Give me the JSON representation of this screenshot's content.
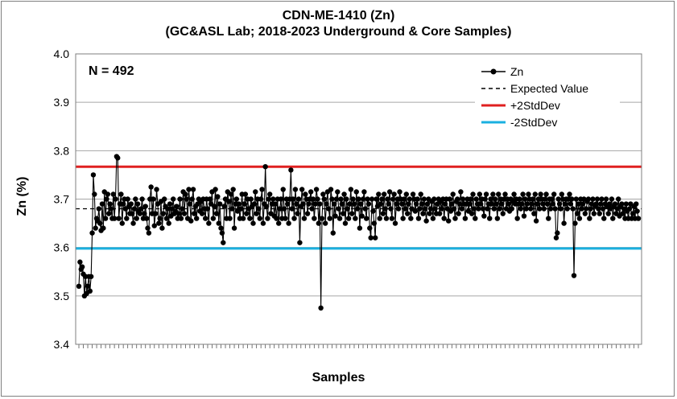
{
  "chart_data": {
    "type": "line",
    "title": "CDN-ME-1410 (Zn)",
    "subtitle": "(GC&ASL Lab; 2018-2023 Underground & Core Samples)",
    "xlabel": "Samples",
    "ylabel": "Zn (%)",
    "ylim": [
      3.4,
      4.0
    ],
    "yticks": [
      "3.4",
      "3.5",
      "3.6",
      "3.7",
      "3.8",
      "3.9",
      "4.0"
    ],
    "annotation": "N = 492",
    "n_samples": 492,
    "legend_position": "top-right",
    "grid": true,
    "expected_value": 3.68,
    "plus_2sd": 3.767,
    "minus_2sd": 3.598,
    "legend": [
      {
        "label": "Zn",
        "style": "line-marker",
        "color": "#000000"
      },
      {
        "label": "Expected Value",
        "style": "dashed",
        "color": "#000000"
      },
      {
        "label": "+2StdDev",
        "style": "solid",
        "color": "#e02020"
      },
      {
        "label": "-2StdDev",
        "style": "solid",
        "color": "#1ab0e0"
      }
    ],
    "series": [
      {
        "name": "Zn",
        "values": [
          3.52,
          3.57,
          3.555,
          3.56,
          3.545,
          3.5,
          3.54,
          3.505,
          3.52,
          3.54,
          3.51,
          3.54,
          3.63,
          3.75,
          3.71,
          3.64,
          3.66,
          3.655,
          3.68,
          3.65,
          3.635,
          3.69,
          3.64,
          3.715,
          3.66,
          3.7,
          3.71,
          3.67,
          3.69,
          3.68,
          3.66,
          3.71,
          3.66,
          3.7,
          3.788,
          3.785,
          3.66,
          3.69,
          3.71,
          3.65,
          3.69,
          3.7,
          3.68,
          3.66,
          3.7,
          3.685,
          3.67,
          3.69,
          3.67,
          3.65,
          3.68,
          3.7,
          3.66,
          3.69,
          3.675,
          3.67,
          3.68,
          3.7,
          3.66,
          3.67,
          3.685,
          3.66,
          3.64,
          3.63,
          3.7,
          3.725,
          3.67,
          3.7,
          3.645,
          3.67,
          3.72,
          3.69,
          3.65,
          3.66,
          3.695,
          3.64,
          3.67,
          3.7,
          3.685,
          3.66,
          3.68,
          3.65,
          3.69,
          3.665,
          3.68,
          3.7,
          3.67,
          3.675,
          3.685,
          3.66,
          3.67,
          3.7,
          3.66,
          3.68,
          3.715,
          3.67,
          3.71,
          3.7,
          3.66,
          3.72,
          3.69,
          3.655,
          3.7,
          3.72,
          3.67,
          3.685,
          3.66,
          3.69,
          3.7,
          3.675,
          3.695,
          3.67,
          3.7,
          3.68,
          3.66,
          3.7,
          3.68,
          3.65,
          3.7,
          3.69,
          3.715,
          3.66,
          3.685,
          3.72,
          3.67,
          3.705,
          3.65,
          3.69,
          3.64,
          3.63,
          3.61,
          3.685,
          3.7,
          3.66,
          3.715,
          3.695,
          3.66,
          3.71,
          3.68,
          3.72,
          3.64,
          3.69,
          3.7,
          3.675,
          3.69,
          3.66,
          3.68,
          3.71,
          3.66,
          3.69,
          3.71,
          3.67,
          3.7,
          3.68,
          3.66,
          3.7,
          3.685,
          3.65,
          3.69,
          3.715,
          3.67,
          3.7,
          3.68,
          3.66,
          3.7,
          3.72,
          3.65,
          3.69,
          3.767,
          3.685,
          3.66,
          3.7,
          3.71,
          3.67,
          3.69,
          3.7,
          3.665,
          3.69,
          3.66,
          3.7,
          3.65,
          3.68,
          3.7,
          3.66,
          3.72,
          3.68,
          3.66,
          3.7,
          3.69,
          3.65,
          3.7,
          3.76,
          3.68,
          3.7,
          3.66,
          3.72,
          3.69,
          3.67,
          3.7,
          3.61,
          3.685,
          3.72,
          3.69,
          3.66,
          3.71,
          3.7,
          3.67,
          3.69,
          3.7,
          3.715,
          3.68,
          3.7,
          3.66,
          3.69,
          3.72,
          3.7,
          3.65,
          3.69,
          3.475,
          3.66,
          3.71,
          3.7,
          3.65,
          3.69,
          3.715,
          3.68,
          3.66,
          3.72,
          3.7,
          3.63,
          3.69,
          3.665,
          3.7,
          3.715,
          3.68,
          3.66,
          3.7,
          3.69,
          3.67,
          3.71,
          3.65,
          3.7,
          3.68,
          3.66,
          3.69,
          3.72,
          3.67,
          3.7,
          3.69,
          3.66,
          3.715,
          3.68,
          3.7,
          3.64,
          3.69,
          3.665,
          3.7,
          3.715,
          3.68,
          3.66,
          3.7,
          3.69,
          3.64,
          3.62,
          3.7,
          3.675,
          3.65,
          3.62,
          3.7,
          3.685,
          3.71,
          3.66,
          3.69,
          3.7,
          3.67,
          3.71,
          3.68,
          3.66,
          3.7,
          3.69,
          3.715,
          3.68,
          3.66,
          3.7,
          3.71,
          3.65,
          3.69,
          3.7,
          3.68,
          3.715,
          3.7,
          3.69,
          3.66,
          3.7,
          3.68,
          3.71,
          3.67,
          3.69,
          3.7,
          3.66,
          3.68,
          3.71,
          3.7,
          3.675,
          3.69,
          3.7,
          3.66,
          3.68,
          3.71,
          3.69,
          3.67,
          3.7,
          3.68,
          3.655,
          3.69,
          3.7,
          3.67,
          3.68,
          3.695,
          3.66,
          3.7,
          3.68,
          3.67,
          3.69,
          3.7,
          3.67,
          3.695,
          3.68,
          3.7,
          3.66,
          3.69,
          3.7,
          3.68,
          3.655,
          3.7,
          3.675,
          3.69,
          3.71,
          3.68,
          3.66,
          3.695,
          3.7,
          3.67,
          3.69,
          3.715,
          3.68,
          3.7,
          3.69,
          3.66,
          3.69,
          3.7,
          3.675,
          3.69,
          3.7,
          3.67,
          3.71,
          3.68,
          3.66,
          3.7,
          3.69,
          3.68,
          3.71,
          3.69,
          3.7,
          3.68,
          3.665,
          3.7,
          3.71,
          3.68,
          3.69,
          3.66,
          3.7,
          3.69,
          3.71,
          3.68,
          3.7,
          3.69,
          3.66,
          3.71,
          3.68,
          3.7,
          3.69,
          3.67,
          3.7,
          3.71,
          3.68,
          3.7,
          3.69,
          3.675,
          3.7,
          3.68,
          3.695,
          3.71,
          3.69,
          3.7,
          3.66,
          3.69,
          3.7,
          3.68,
          3.69,
          3.71,
          3.665,
          3.7,
          3.68,
          3.69,
          3.71,
          3.7,
          3.68,
          3.69,
          3.7,
          3.67,
          3.71,
          3.655,
          3.69,
          3.7,
          3.68,
          3.71,
          3.7,
          3.69,
          3.68,
          3.7,
          3.71,
          3.69,
          3.66,
          3.7,
          3.68,
          3.7,
          3.69,
          3.71,
          3.68,
          3.62,
          3.63,
          3.7,
          3.69,
          3.68,
          3.71,
          3.7,
          3.65,
          3.69,
          3.7,
          3.68,
          3.7,
          3.71,
          3.69,
          3.7,
          3.68,
          3.542,
          3.65,
          3.7,
          3.67,
          3.69,
          3.66,
          3.7,
          3.68,
          3.69,
          3.7,
          3.67,
          3.68,
          3.695,
          3.7,
          3.66,
          3.68,
          3.69,
          3.7,
          3.67,
          3.685,
          3.69,
          3.7,
          3.68,
          3.67,
          3.69,
          3.7,
          3.68,
          3.66,
          3.69,
          3.7,
          3.685,
          3.67,
          3.69,
          3.68,
          3.7,
          3.66,
          3.685,
          3.69,
          3.67,
          3.68,
          3.7,
          3.665,
          3.685,
          3.69,
          3.67,
          3.68,
          3.66,
          3.69,
          3.675,
          3.66,
          3.68,
          3.69,
          3.66,
          3.67,
          3.685,
          3.66,
          3.69,
          3.675,
          3.66
        ]
      }
    ]
  }
}
